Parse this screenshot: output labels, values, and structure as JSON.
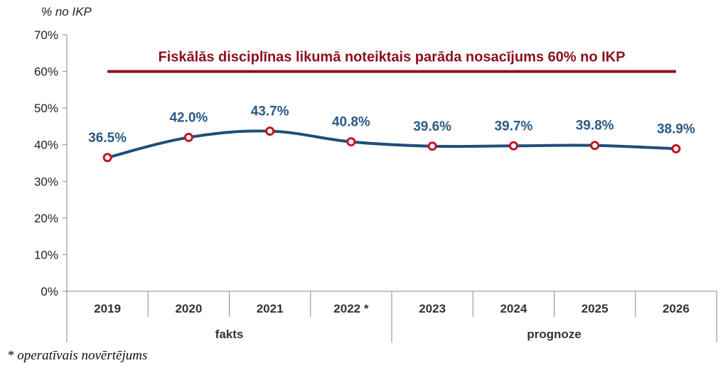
{
  "chart_data": {
    "type": "line",
    "unit_label": "% no IKP",
    "ylim": [
      0,
      70
    ],
    "yticks": [
      "0%",
      "10%",
      "20%",
      "30%",
      "40%",
      "50%",
      "60%",
      "70%"
    ],
    "categories": [
      "2019",
      "2020",
      "2021",
      "2022 *",
      "2023",
      "2024",
      "2025",
      "2026"
    ],
    "series": [
      {
        "values": [
          36.5,
          42.0,
          43.7,
          40.8,
          39.6,
          39.7,
          39.8,
          38.9
        ],
        "labels": [
          "36.5%",
          "42.0%",
          "43.7%",
          "40.8%",
          "39.6%",
          "39.7%",
          "39.8%",
          "38.9%"
        ],
        "color": "#1f4e79",
        "marker_color": "#c0151e"
      }
    ],
    "reference_line": {
      "value": 60,
      "label": "Fiskālās disciplīnas likumā noteiktais parāda nosacījums 60% no IKP",
      "color": "#8b0f1f"
    },
    "groups": [
      {
        "label": "fakts",
        "span": 4
      },
      {
        "label": "prognoze",
        "span": 4
      }
    ],
    "grid": false
  },
  "footnote": "* operatīvais novērtējums"
}
